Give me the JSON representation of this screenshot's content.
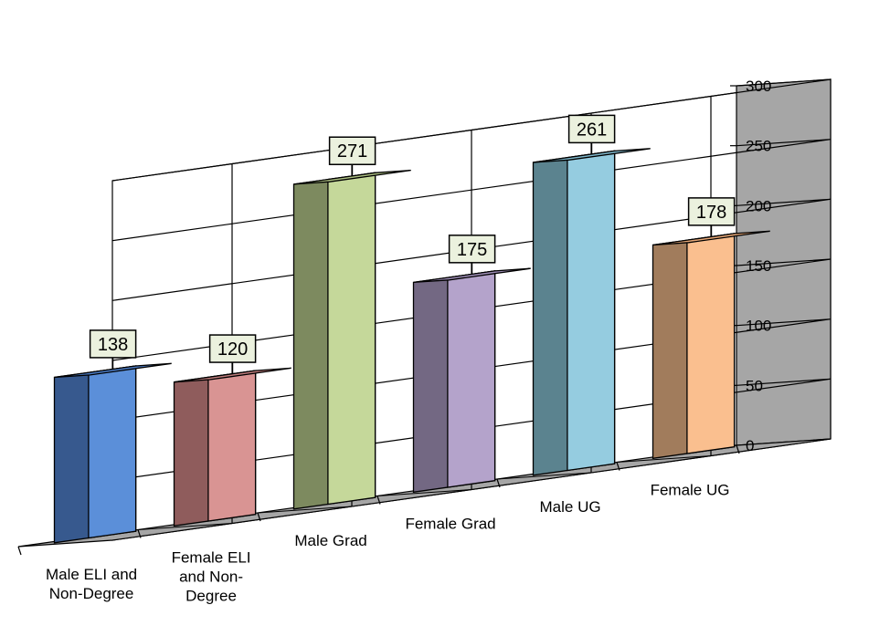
{
  "chart_data": {
    "type": "bar",
    "style": "3d-perspective",
    "title": "",
    "xlabel": "",
    "ylabel": "",
    "categories": [
      "Male ELI and Non-Degree",
      "Female ELI and Non-Degree",
      "Male Grad",
      "Female Grad",
      "Male UG",
      "Female UG"
    ],
    "category_label_lines": [
      [
        "Male ELI and",
        "Non-Degree"
      ],
      [
        "Female ELI",
        "and Non-",
        "Degree"
      ],
      [
        "Male Grad"
      ],
      [
        "Female Grad"
      ],
      [
        "Male UG"
      ],
      [
        "Female UG"
      ]
    ],
    "values": [
      138,
      120,
      271,
      175,
      261,
      178
    ],
    "ylim": [
      0,
      300
    ],
    "yticks": [
      0,
      50,
      100,
      150,
      200,
      250,
      300
    ],
    "y_axis_position": "right",
    "grid": true,
    "legend": "none",
    "bar_colors": [
      {
        "front": "#5b8fd9",
        "side": "#37598e",
        "top": "#4a79c0"
      },
      {
        "front": "#d99493",
        "side": "#8f5c5c",
        "top": "#c07e7d"
      },
      {
        "front": "#c5d89a",
        "side": "#7d8a5f",
        "top": "#aec183"
      },
      {
        "front": "#b4a3cb",
        "side": "#736883",
        "top": "#9d8db5"
      },
      {
        "front": "#95cce0",
        "side": "#5b838f",
        "top": "#7fb7cb"
      },
      {
        "front": "#fabf8f",
        "side": "#a17c5c",
        "top": "#e7a877"
      }
    ],
    "floor_color": "#a6a6a6",
    "back_wall_color": "#ffffff",
    "side_wall_color": "#a6a6a6",
    "data_label_background": "#ebf1de"
  }
}
